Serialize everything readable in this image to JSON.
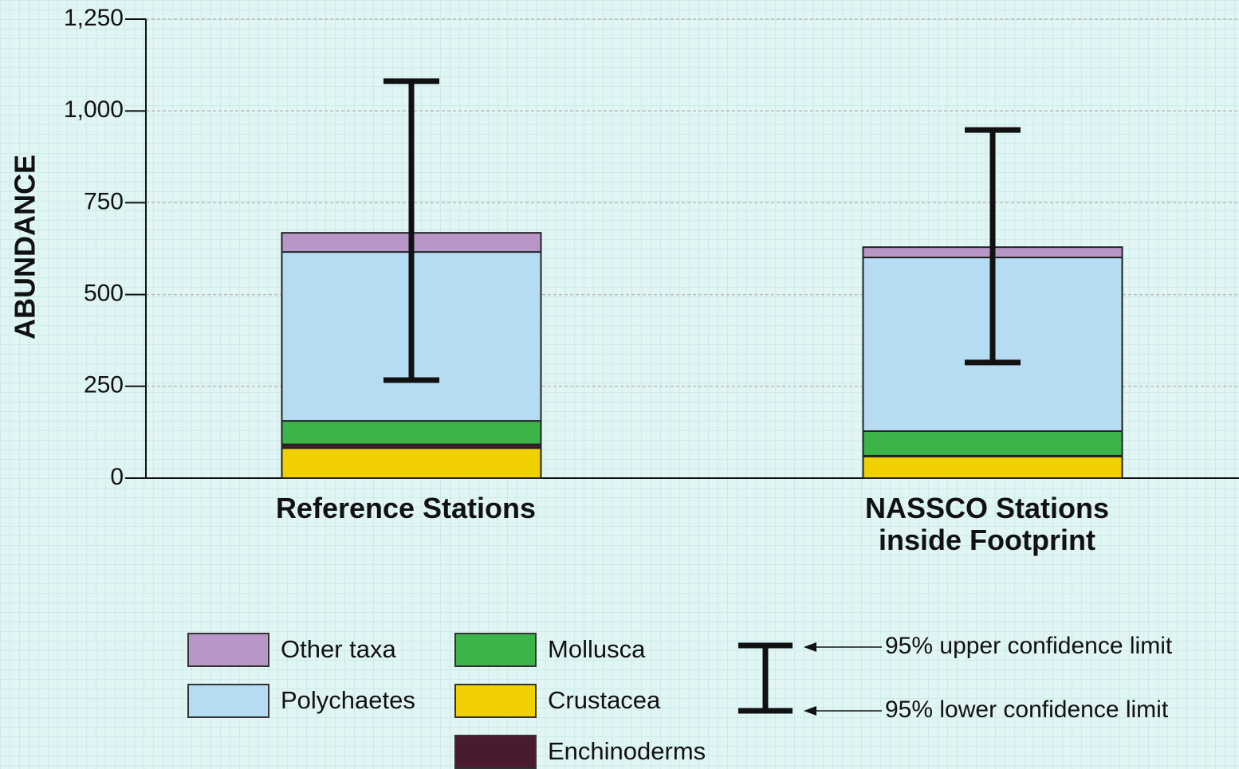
{
  "chart_data": {
    "type": "stacked_bar",
    "y_label": "ABUNDANCE",
    "categories": [
      "Reference Stations",
      "NASSCO Stations inside Footprint"
    ],
    "series": [
      {
        "name": "Crustacea",
        "color": "#f0d000",
        "values": [
          82,
          59
        ]
      },
      {
        "name": "Enchinoderms",
        "color": "#4a1a2e",
        "values": [
          10,
          2
        ]
      },
      {
        "name": "Mollusca",
        "color": "#3cb44a",
        "values": [
          64,
          67
        ]
      },
      {
        "name": "Polychaetes",
        "color": "#b5dcf2",
        "values": [
          460,
          473
        ]
      },
      {
        "name": "Other taxa",
        "color": "#b996c8",
        "values": [
          52,
          28
        ]
      }
    ],
    "confidence_limits": {
      "upper": [
        1081,
        948
      ],
      "lower": [
        267,
        315
      ],
      "upper_label": "95% upper confidence limit",
      "lower_label": "95% lower confidence limit"
    },
    "ylim": [
      0,
      1250
    ],
    "yticks": [
      0,
      250,
      500,
      750,
      {
        "value": 1000,
        "label": "1,000"
      },
      {
        "value": 1250,
        "label": "1,250"
      }
    ],
    "grid": true
  }
}
